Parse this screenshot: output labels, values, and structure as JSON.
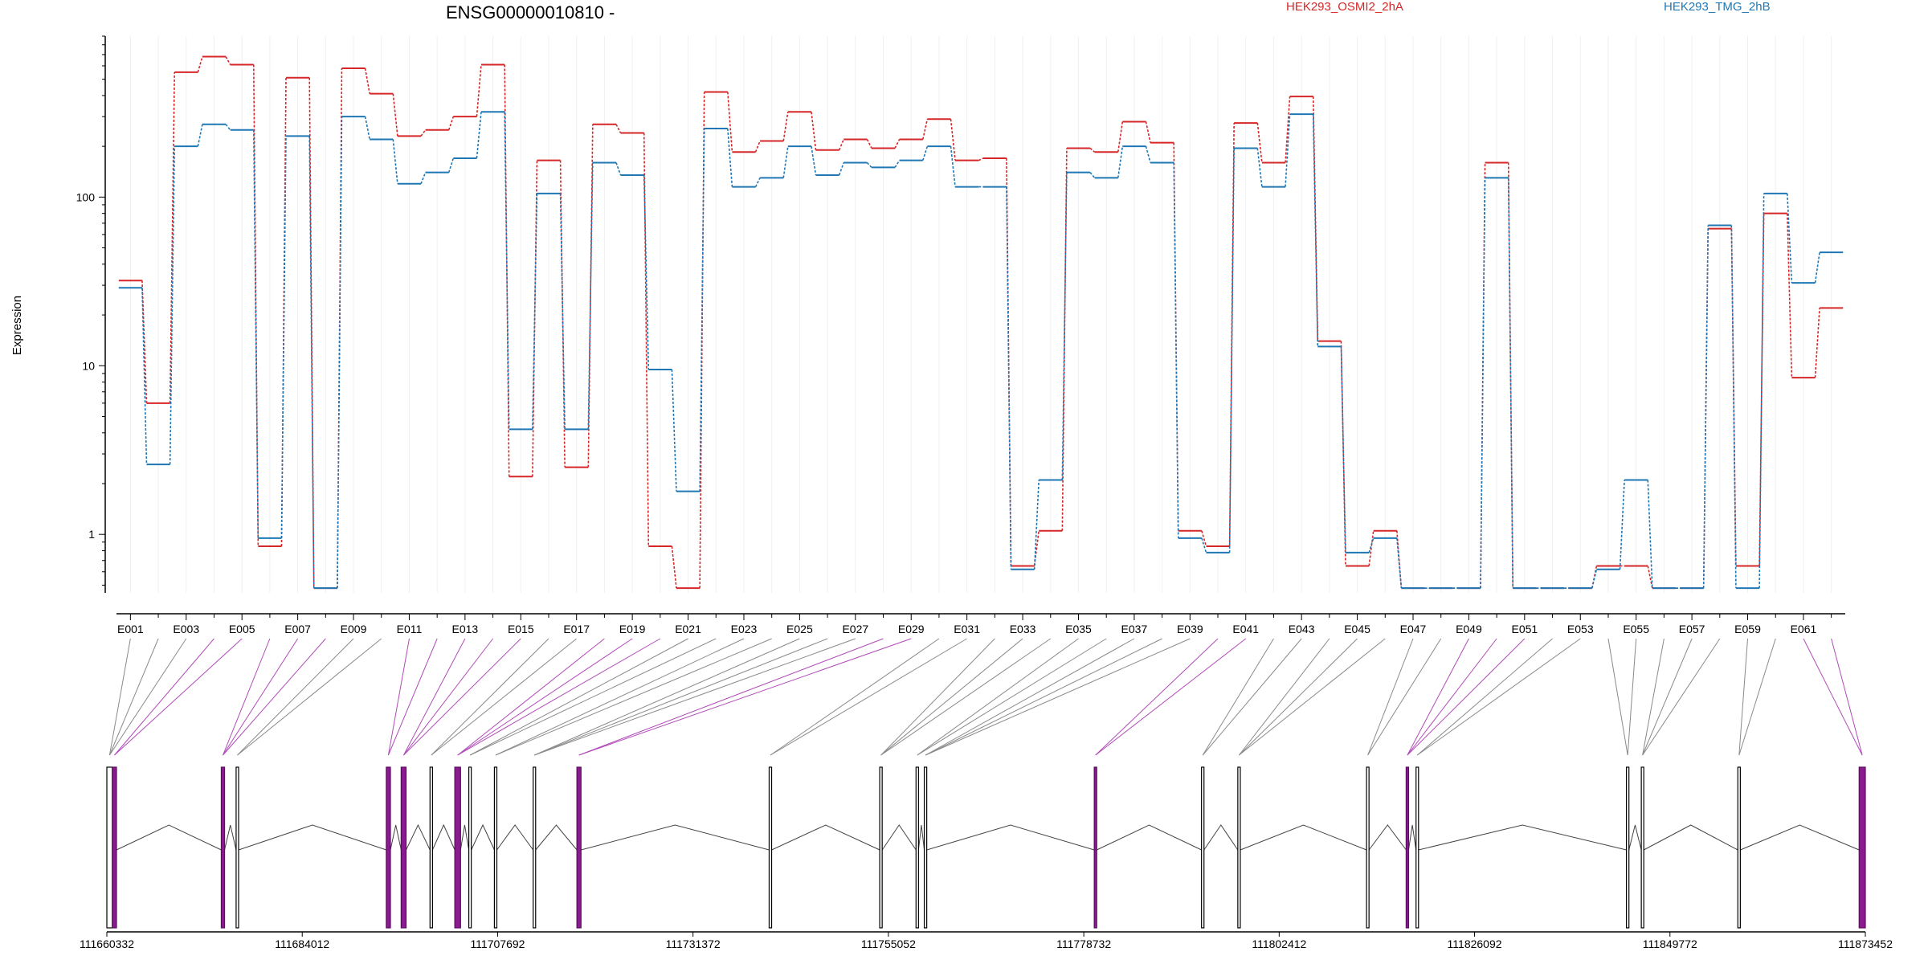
{
  "chart_data": {
    "type": "line",
    "title": "ENSG00000010810 -",
    "ylabel": "Expression",
    "yscale": "log",
    "ylim": [
      0.45,
      900
    ],
    "ytick_labels": [
      "1",
      "10",
      "100"
    ],
    "yticks": [
      1,
      10,
      100
    ],
    "legend": [
      "HEK293_OSMI2_2hA",
      "HEK293_TMG_2hB"
    ],
    "legend_placement": "top-right",
    "grid": false,
    "exon_tick_labels": [
      "E001",
      "E003",
      "E005",
      "E007",
      "E009",
      "E011",
      "E013",
      "E015",
      "E017",
      "E019",
      "E021",
      "E023",
      "E025",
      "E027",
      "E029",
      "E031",
      "E033",
      "E035",
      "E037",
      "E039",
      "E041",
      "E043",
      "E045",
      "E047",
      "E049",
      "E051",
      "E053",
      "E055",
      "E057",
      "E059",
      "E061"
    ],
    "x": [
      "E001",
      "E002",
      "E003",
      "E004",
      "E005",
      "E006",
      "E007",
      "E008",
      "E009",
      "E010",
      "E011",
      "E012",
      "E013",
      "E014",
      "E015",
      "E016",
      "E017",
      "E018",
      "E019",
      "E020",
      "E021",
      "E022",
      "E023",
      "E024",
      "E025",
      "E026",
      "E027",
      "E028",
      "E029",
      "E030",
      "E031",
      "E032",
      "E033",
      "E034",
      "E035",
      "E036",
      "E037",
      "E038",
      "E039",
      "E040",
      "E041",
      "E042",
      "E043",
      "E044",
      "E045",
      "E046",
      "E047",
      "E048",
      "E049",
      "E050",
      "E051",
      "E052",
      "E053",
      "E054",
      "E055",
      "E056",
      "E057",
      "E058",
      "E059",
      "E060",
      "E061",
      "E062"
    ],
    "series": [
      {
        "name": "HEK293_OSMI2_2hA",
        "color": "#d62728",
        "values": [
          32,
          6,
          550,
          680,
          610,
          0.85,
          510,
          0.48,
          580,
          410,
          230,
          250,
          300,
          610,
          2.2,
          165,
          2.5,
          270,
          240,
          0.85,
          0.48,
          420,
          185,
          215,
          320,
          190,
          220,
          195,
          220,
          290,
          165,
          170,
          0.65,
          1.05,
          195,
          185,
          280,
          210,
          1.05,
          0.85,
          275,
          160,
          395,
          14,
          0.65,
          1.05,
          0.48,
          0.48,
          0.48,
          160,
          0.48,
          0.48,
          0.48,
          0.65,
          0.65,
          0.48,
          0.48,
          65,
          0.65,
          80,
          8.5,
          22
        ]
      },
      {
        "name": "HEK293_TMG_2hB",
        "color": "#1f77b4",
        "values": [
          29,
          2.6,
          200,
          270,
          250,
          0.95,
          230,
          0.48,
          300,
          220,
          120,
          140,
          170,
          320,
          4.2,
          105,
          4.2,
          160,
          135,
          9.5,
          1.8,
          255,
          115,
          130,
          200,
          135,
          160,
          150,
          165,
          200,
          115,
          115,
          0.62,
          2.1,
          140,
          130,
          200,
          160,
          0.95,
          0.78,
          195,
          115,
          310,
          13,
          0.78,
          0.95,
          0.48,
          0.48,
          0.48,
          130,
          0.48,
          0.48,
          0.48,
          0.62,
          2.1,
          0.48,
          0.48,
          68,
          0.48,
          105,
          31,
          47
        ]
      }
    ],
    "genomic_coordinate_labels": [
      "111660332",
      "111684012",
      "111707692",
      "111731372",
      "111755052",
      "111778732",
      "111802412",
      "111826092",
      "111849772",
      "111873452"
    ],
    "genomic_range": [
      111660332,
      111873452
    ],
    "exon_blocks": [
      {
        "start": 111660332,
        "end": 111661000,
        "highlight": false
      },
      {
        "start": 111661000,
        "end": 111661500,
        "highlight": true
      },
      {
        "start": 111674200,
        "end": 111674600,
        "highlight": true
      },
      {
        "start": 111676000,
        "end": 111676300,
        "highlight": false
      },
      {
        "start": 111694200,
        "end": 111694700,
        "highlight": true
      },
      {
        "start": 111696000,
        "end": 111696600,
        "highlight": true
      },
      {
        "start": 111699500,
        "end": 111699800,
        "highlight": false
      },
      {
        "start": 111702500,
        "end": 111703200,
        "highlight": true
      },
      {
        "start": 111704200,
        "end": 111704500,
        "highlight": false
      },
      {
        "start": 111707300,
        "end": 111707600,
        "highlight": false
      },
      {
        "start": 111712000,
        "end": 111712300,
        "highlight": false
      },
      {
        "start": 111717300,
        "end": 111717800,
        "highlight": true
      },
      {
        "start": 111740600,
        "end": 111740900,
        "highlight": false
      },
      {
        "start": 111754000,
        "end": 111754300,
        "highlight": false
      },
      {
        "start": 111758400,
        "end": 111758700,
        "highlight": false
      },
      {
        "start": 111759400,
        "end": 111759700,
        "highlight": false
      },
      {
        "start": 111780000,
        "end": 111780300,
        "highlight": true
      },
      {
        "start": 111793000,
        "end": 111793300,
        "highlight": false
      },
      {
        "start": 111797400,
        "end": 111797700,
        "highlight": false
      },
      {
        "start": 111813000,
        "end": 111813300,
        "highlight": false
      },
      {
        "start": 111817800,
        "end": 111818100,
        "highlight": true
      },
      {
        "start": 111819000,
        "end": 111819300,
        "highlight": false
      },
      {
        "start": 111844500,
        "end": 111844800,
        "highlight": false
      },
      {
        "start": 111846300,
        "end": 111846600,
        "highlight": false
      },
      {
        "start": 111858000,
        "end": 111858300,
        "highlight": false
      },
      {
        "start": 111872700,
        "end": 111873452,
        "highlight": true
      }
    ]
  }
}
